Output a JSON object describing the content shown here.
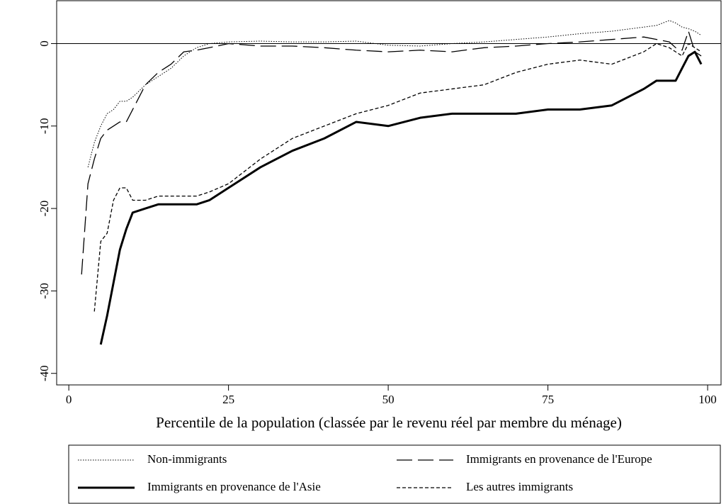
{
  "chart_data": {
    "type": "line",
    "x_label": "Percentile de la population (classée par le revenu réel par membre du ménage)",
    "x": [
      2,
      3,
      4,
      5,
      6,
      7,
      8,
      9,
      10,
      12,
      14,
      16,
      18,
      20,
      22,
      25,
      30,
      35,
      40,
      45,
      50,
      55,
      60,
      65,
      70,
      75,
      80,
      85,
      90,
      92,
      94,
      95,
      96,
      97,
      98,
      99
    ],
    "series": [
      {
        "name": "Non-immigrants",
        "color": "#000000",
        "style": "dotted",
        "width": 1,
        "values": [
          null,
          -15,
          -12,
          -10,
          -8.5,
          -8,
          -7,
          -7,
          -6.5,
          -5,
          -4,
          -3,
          -1.5,
          -0.5,
          0,
          0.2,
          0.3,
          0.2,
          0.2,
          0.3,
          -0.2,
          -0.3,
          0,
          0.2,
          0.5,
          0.8,
          1.2,
          1.5,
          2,
          2.2,
          2.8,
          2.5,
          2,
          1.8,
          1.5,
          1
        ]
      },
      {
        "name": "Immigrants en provenance de l'Europe",
        "color": "#000000",
        "style": "longdash",
        "width": 1.3,
        "values": [
          -28,
          -17,
          -14,
          -11.5,
          -10.5,
          -10,
          -9.5,
          -9.5,
          -8,
          -5,
          -3.5,
          -2.5,
          -1,
          -0.8,
          -0.5,
          0,
          -0.3,
          -0.3,
          -0.5,
          -0.8,
          -1,
          -0.8,
          -1,
          -0.5,
          -0.3,
          0,
          0.2,
          0.5,
          0.8,
          0.5,
          0.2,
          -0.5,
          -0.8,
          1.5,
          -1,
          -1.5
        ]
      },
      {
        "name": "Immigrants en provenance de l'Asie",
        "color": "#000000",
        "style": "solid",
        "width": 3,
        "values": [
          null,
          null,
          null,
          -36.5,
          -33,
          -29,
          -25,
          -22.5,
          -20.5,
          -20,
          -19.5,
          -19.5,
          -19.5,
          -19.5,
          -19,
          -17.5,
          -15,
          -13,
          -11.5,
          -9.5,
          -10,
          -9,
          -8.5,
          -8.5,
          -8.5,
          -8,
          -8,
          -7.5,
          -5.5,
          -4.5,
          -4.5,
          -4.5,
          -3,
          -1.5,
          -1,
          -2.5
        ]
      },
      {
        "name": "Les autres immigrants",
        "color": "#000000",
        "style": "dashed",
        "width": 1.3,
        "values": [
          null,
          null,
          -32.5,
          -24,
          -23,
          -19,
          -17.5,
          -17.5,
          -19,
          -19,
          -18.5,
          -18.5,
          -18.5,
          -18.5,
          -18,
          -17,
          -14,
          -11.5,
          -10,
          -8.5,
          -7.5,
          -6,
          -5.5,
          -5,
          -3.5,
          -2.5,
          -2,
          -2.5,
          -1,
          0,
          -0.5,
          -1,
          -1.5,
          0,
          -0.5,
          -1
        ]
      }
    ],
    "xlim": [
      -1.9,
      102.1
    ],
    "ylim": [
      -41.4,
      5.2
    ],
    "xticks": [
      0,
      25,
      50,
      75,
      100
    ],
    "yticks": [
      0,
      -10,
      -20,
      -30,
      -40
    ],
    "hline": 0,
    "grid": false,
    "legend": "bottom"
  }
}
